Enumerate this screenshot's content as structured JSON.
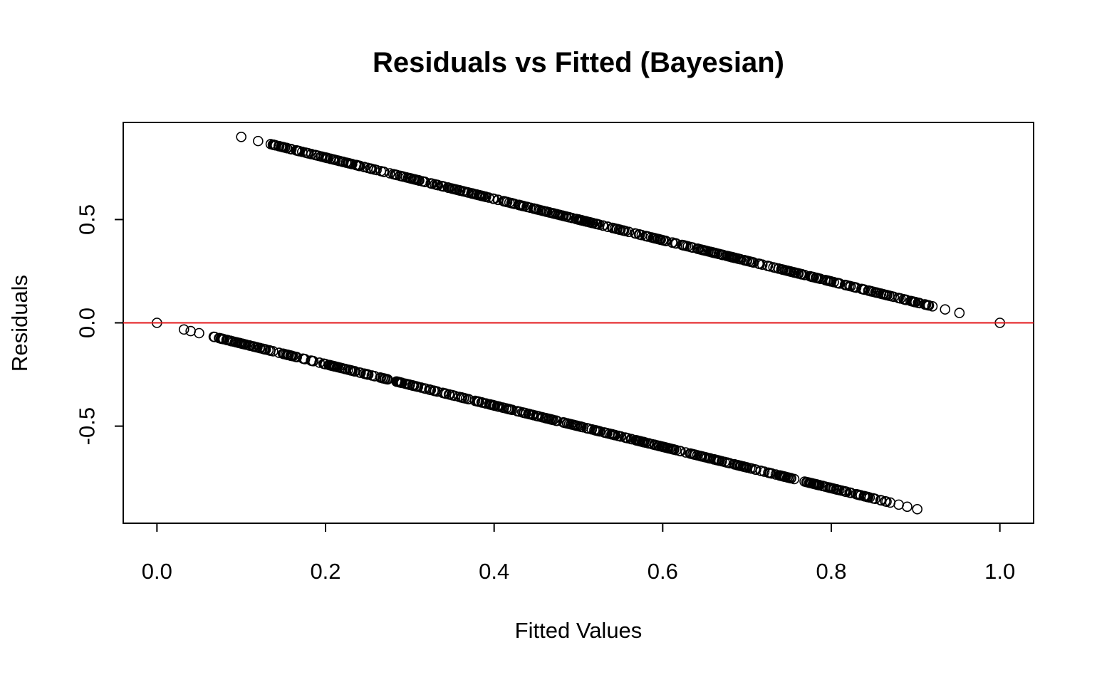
{
  "chart_data": {
    "type": "scatter",
    "title": "Residuals vs Fitted (Bayesian)",
    "xlabel": "Fitted Values",
    "ylabel": "Residuals",
    "xlim": [
      -0.04,
      1.04
    ],
    "ylim": [
      -0.97,
      0.97
    ],
    "x_ticks": [
      0.0,
      0.2,
      0.4,
      0.6,
      0.8,
      1.0
    ],
    "x_tick_labels": [
      "0.0",
      "0.2",
      "0.4",
      "0.6",
      "0.8",
      "1.0"
    ],
    "y_ticks": [
      -0.5,
      0.0,
      0.5
    ],
    "y_tick_labels": [
      "-0.5",
      "0.0",
      "0.5"
    ],
    "grid": false,
    "reference_line": {
      "y": 0,
      "color": "#e31a1c"
    },
    "point_color": "#000000",
    "point_style": "open-circle",
    "series": [
      {
        "description": "observed = 1 (residual = 1 - fitted)",
        "x_range": [
          0.1,
          0.952
        ],
        "relation": "y = 1 - x",
        "x_samples": [
          0.1,
          0.12,
          0.135,
          0.15,
          0.165,
          0.18,
          0.2,
          0.25,
          0.3,
          0.35,
          0.4,
          0.45,
          0.5,
          0.55,
          0.6,
          0.65,
          0.7,
          0.75,
          0.8,
          0.85,
          0.88,
          0.9,
          0.92,
          0.935,
          0.952
        ],
        "y_samples": [
          0.9,
          0.88,
          0.865,
          0.85,
          0.835,
          0.82,
          0.8,
          0.75,
          0.7,
          0.65,
          0.6,
          0.55,
          0.5,
          0.45,
          0.4,
          0.35,
          0.3,
          0.25,
          0.2,
          0.15,
          0.12,
          0.1,
          0.08,
          0.065,
          0.048
        ]
      },
      {
        "description": "observed = 0 (residual = -fitted)",
        "x_range": [
          0.032,
          0.902
        ],
        "relation": "y = -x",
        "x_samples": [
          0.032,
          0.04,
          0.05,
          0.1,
          0.15,
          0.2,
          0.25,
          0.3,
          0.35,
          0.4,
          0.45,
          0.5,
          0.55,
          0.6,
          0.65,
          0.7,
          0.75,
          0.8,
          0.85,
          0.87,
          0.88,
          0.89,
          0.902
        ],
        "y_samples": [
          -0.032,
          -0.04,
          -0.05,
          -0.1,
          -0.15,
          -0.2,
          -0.25,
          -0.3,
          -0.35,
          -0.4,
          -0.45,
          -0.5,
          -0.55,
          -0.6,
          -0.65,
          -0.7,
          -0.75,
          -0.8,
          -0.85,
          -0.87,
          -0.88,
          -0.89,
          -0.902
        ]
      },
      {
        "description": "boundary points",
        "x": [
          0.0,
          1.0
        ],
        "y": [
          0.0,
          0.0
        ]
      }
    ]
  }
}
